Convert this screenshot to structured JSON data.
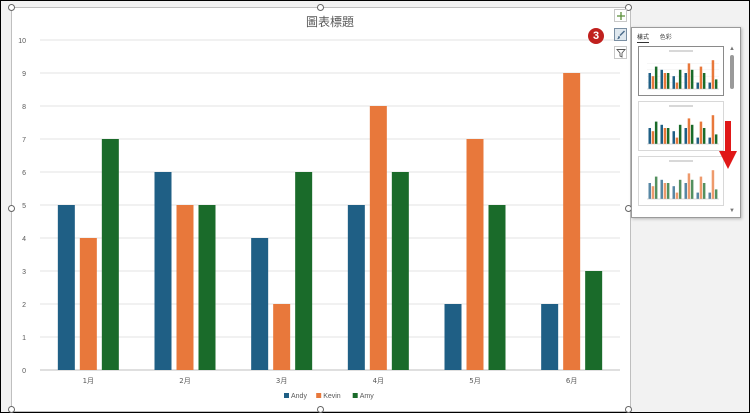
{
  "chart_data": {
    "type": "bar",
    "title": "圖表標題",
    "categories": [
      "1月",
      "2月",
      "3月",
      "4月",
      "5月",
      "6月"
    ],
    "series": [
      {
        "name": "Andy",
        "color": "#1f5f85",
        "values": [
          5,
          6,
          4,
          5,
          2,
          2
        ]
      },
      {
        "name": "Kevin",
        "color": "#e8783b",
        "values": [
          4,
          5,
          2,
          8,
          7,
          9
        ]
      },
      {
        "name": "Amy",
        "color": "#1a6b2a",
        "values": [
          7,
          5,
          6,
          6,
          5,
          3
        ]
      }
    ],
    "ylim": [
      0,
      10
    ],
    "yticks": [
      0,
      1,
      2,
      3,
      4,
      5,
      6,
      7,
      8,
      9,
      10
    ],
    "grid": true,
    "legend": "bottom"
  },
  "side_buttons": [
    {
      "name": "chart-elements-button",
      "icon": "plus-icon"
    },
    {
      "name": "chart-styles-button",
      "icon": "paintbrush-icon"
    },
    {
      "name": "chart-filters-button",
      "icon": "filter-icon"
    }
  ],
  "step_badge": "3",
  "style_panel": {
    "tabs": [
      "樣式",
      "色彩"
    ],
    "active_tab": "樣式"
  },
  "colors": {
    "accent_red": "#c0201e",
    "arrow_red": "#e01818"
  }
}
